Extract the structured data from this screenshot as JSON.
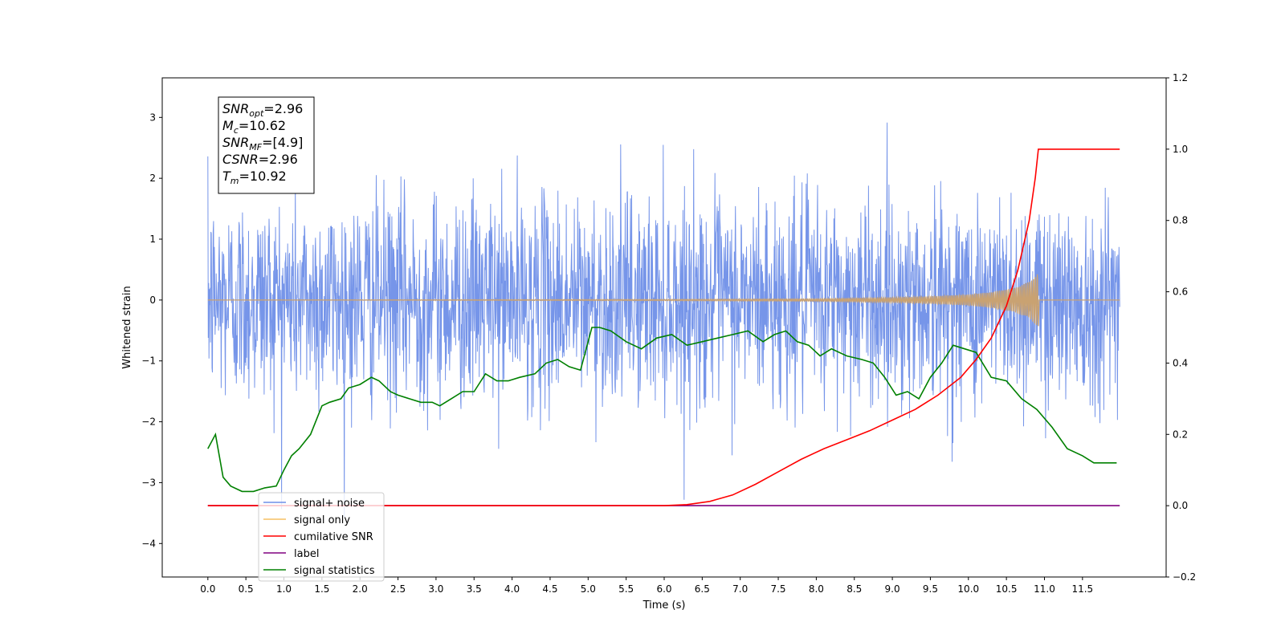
{
  "chart_data": {
    "type": "line",
    "xlabel": "Time (s)",
    "ylabel": "Whitened strain",
    "xlim": [
      -0.6,
      12.6
    ],
    "ylim_left": [
      -4.55,
      3.65
    ],
    "ylim_right": [
      -0.2,
      1.2
    ],
    "x_ticks": [
      0.0,
      0.5,
      1.0,
      1.5,
      2.0,
      2.5,
      3.0,
      3.5,
      4.0,
      4.5,
      5.0,
      5.5,
      6.0,
      6.5,
      7.0,
      7.5,
      8.0,
      8.5,
      9.0,
      9.5,
      10.0,
      10.5,
      11.0,
      11.5
    ],
    "x_tick_labels": [
      "0.0",
      "0.5",
      "1.0",
      "1.5",
      "2.0",
      "2.5",
      "3.0",
      "3.5",
      "4.0",
      "4.5",
      "5.0",
      "5.5",
      "6.0",
      "6.5",
      "7.0",
      "7.5",
      "8.0",
      "8.5",
      "9.0",
      "9.5",
      "10.0",
      "10.5",
      "11.0",
      "11.5"
    ],
    "y_left_ticks": [
      -4,
      -3,
      -2,
      -1,
      0,
      1,
      2,
      3
    ],
    "y_left_tick_labels": [
      "−4",
      "−3",
      "−2",
      "−1",
      "0",
      "1",
      "2",
      "3"
    ],
    "y_right_ticks": [
      -0.2,
      0.0,
      0.2,
      0.4,
      0.6,
      0.8,
      1.0,
      1.2
    ],
    "y_right_tick_labels": [
      "−0.2",
      "0.0",
      "0.2",
      "0.4",
      "0.6",
      "0.8",
      "1.0",
      "1.2"
    ],
    "info_box": [
      {
        "sym": "SNR",
        "sub": "opt",
        "rest": "=2.96"
      },
      {
        "sym": "M",
        "sub": "c",
        "rest": "=10.62"
      },
      {
        "sym": "SNR",
        "sub": "MF",
        "rest": "=[4.9]"
      },
      {
        "sym": "CSNR",
        "sub": "",
        "rest": "=2.96"
      },
      {
        "sym": "T",
        "sub": "m",
        "rest": "=10.92"
      }
    ],
    "series": [
      {
        "name": "signal+ noise",
        "axis": "left",
        "color": "#6f8fe8",
        "noise": {
          "x_start": 0.0,
          "x_end": 11.99,
          "samples": 2400,
          "sigma": 0.85,
          "max": 3.35,
          "min": -4.1
        }
      },
      {
        "name": "signal only",
        "axis": "left",
        "color": "#f5c064",
        "envelope": {
          "x": [
            0.0,
            6.0,
            8.0,
            9.0,
            9.5,
            10.0,
            10.3,
            10.6,
            10.8,
            10.92
          ],
          "amp": [
            0.0,
            0.01,
            0.02,
            0.04,
            0.06,
            0.09,
            0.13,
            0.2,
            0.3,
            0.45
          ]
        }
      },
      {
        "name": "cumilative SNR",
        "axis": "right",
        "color": "#ff0000",
        "x": [
          0.0,
          6.0,
          6.3,
          6.6,
          6.9,
          7.2,
          7.5,
          7.8,
          8.1,
          8.4,
          8.7,
          9.0,
          9.3,
          9.6,
          9.9,
          10.1,
          10.3,
          10.5,
          10.65,
          10.8,
          10.88,
          10.92,
          11.99
        ],
        "y": [
          0.0,
          0.0,
          0.003,
          0.012,
          0.03,
          0.06,
          0.095,
          0.13,
          0.16,
          0.185,
          0.21,
          0.24,
          0.27,
          0.31,
          0.36,
          0.41,
          0.47,
          0.56,
          0.66,
          0.8,
          0.92,
          1.0,
          1.0
        ]
      },
      {
        "name": "label",
        "axis": "right",
        "color": "#800080",
        "x": [
          0.0,
          11.99
        ],
        "y": [
          0.0,
          0.0
        ]
      },
      {
        "name": "signal statistics",
        "axis": "right",
        "color": "#008000",
        "x": [
          0.0,
          0.1,
          0.2,
          0.3,
          0.45,
          0.6,
          0.75,
          0.9,
          1.0,
          1.1,
          1.2,
          1.35,
          1.5,
          1.6,
          1.75,
          1.85,
          2.0,
          2.15,
          2.25,
          2.4,
          2.5,
          2.65,
          2.8,
          2.95,
          3.05,
          3.2,
          3.35,
          3.5,
          3.65,
          3.8,
          3.95,
          4.1,
          4.3,
          4.45,
          4.6,
          4.75,
          4.9,
          5.05,
          5.15,
          5.3,
          5.5,
          5.7,
          5.9,
          6.1,
          6.3,
          6.5,
          6.7,
          6.9,
          7.1,
          7.3,
          7.45,
          7.6,
          7.75,
          7.9,
          8.05,
          8.2,
          8.4,
          8.6,
          8.75,
          8.9,
          9.05,
          9.2,
          9.35,
          9.5,
          9.65,
          9.8,
          9.95,
          10.1,
          10.3,
          10.5,
          10.7,
          10.9,
          11.1,
          11.3,
          11.5,
          11.65,
          11.8,
          11.95
        ],
        "y": [
          0.16,
          0.2,
          0.08,
          0.055,
          0.04,
          0.04,
          0.05,
          0.055,
          0.1,
          0.14,
          0.16,
          0.2,
          0.28,
          0.29,
          0.3,
          0.33,
          0.34,
          0.36,
          0.35,
          0.32,
          0.31,
          0.3,
          0.29,
          0.29,
          0.28,
          0.3,
          0.32,
          0.32,
          0.37,
          0.35,
          0.35,
          0.36,
          0.37,
          0.4,
          0.41,
          0.39,
          0.38,
          0.5,
          0.5,
          0.49,
          0.46,
          0.44,
          0.47,
          0.48,
          0.45,
          0.46,
          0.47,
          0.48,
          0.49,
          0.46,
          0.48,
          0.49,
          0.46,
          0.45,
          0.42,
          0.44,
          0.42,
          0.41,
          0.4,
          0.36,
          0.31,
          0.32,
          0.3,
          0.36,
          0.4,
          0.45,
          0.44,
          0.43,
          0.36,
          0.35,
          0.3,
          0.27,
          0.22,
          0.16,
          0.14,
          0.12,
          0.12,
          0.12
        ]
      }
    ],
    "legend": {
      "position": "lower-left"
    }
  }
}
